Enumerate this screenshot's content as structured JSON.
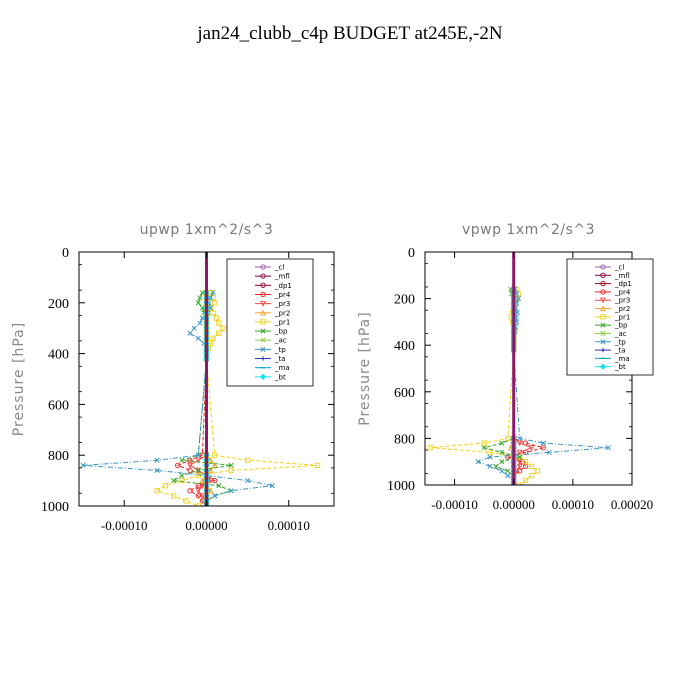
{
  "figure": {
    "title": "jan24_clubb_c4p  BUDGET at245E,-2N"
  },
  "chart_data": [
    {
      "type": "line",
      "title": "upwp   1xm^2/s^3",
      "ylabel": "Pressure [hPa]",
      "ylim": [
        1000,
        0
      ],
      "xlim": [
        -0.000155,
        0.000155
      ],
      "yticks": [
        "0",
        "200",
        "400",
        "600",
        "800",
        "1000"
      ],
      "xticks": [
        "-0.00010",
        "0.00000",
        "0.00010"
      ],
      "xtick_values": [
        -0.0001,
        0,
        0.0001
      ],
      "legend_position": "top-right",
      "levels": [
        160,
        180,
        200,
        220,
        240,
        260,
        280,
        300,
        320,
        340,
        360,
        380,
        400,
        420,
        800,
        820,
        840,
        860,
        880,
        900,
        920,
        940,
        960,
        980,
        1000
      ],
      "series": [
        {
          "name": "_cl",
          "color": "#9a5fb5",
          "marker": "o",
          "values": [
            0,
            0,
            0,
            0,
            0,
            0,
            0,
            0,
            0,
            0,
            0,
            0,
            0,
            0,
            0,
            0,
            0,
            0,
            0,
            0,
            0,
            0,
            0,
            0,
            0
          ]
        },
        {
          "name": "_mfl",
          "color": "#8b0045",
          "marker": "o",
          "values": [
            0,
            0,
            0,
            0,
            0,
            0,
            0,
            0,
            0,
            0,
            0,
            0,
            0,
            0,
            0,
            0,
            0,
            0,
            0,
            0,
            0,
            0,
            0,
            0,
            0
          ]
        },
        {
          "name": "_dp1",
          "color": "#9b0020",
          "marker": "o",
          "values": [
            0,
            0,
            0,
            0,
            0,
            0,
            0,
            0,
            0,
            0,
            0,
            0,
            0,
            0,
            0,
            0,
            0,
            0,
            0,
            0,
            0,
            0,
            0,
            0,
            0
          ]
        },
        {
          "name": "_pr4",
          "color": "#e8231d",
          "marker": "o",
          "values": [
            0,
            0,
            0,
            0,
            0,
            0,
            0,
            0,
            0,
            0,
            0,
            0,
            0,
            0,
            -5e-06,
            -2e-05,
            -3.5e-05,
            -2e-05,
            0,
            1e-05,
            -1e-05,
            -2e-05,
            -1e-05,
            -5e-06,
            0
          ]
        },
        {
          "name": "_pr3",
          "color": "#f04a4a",
          "marker": "v",
          "values": [
            0,
            0,
            0,
            0,
            0,
            0,
            0,
            0,
            0,
            0,
            0,
            0,
            0,
            0,
            0,
            -1e-05,
            -2e-05,
            -1e-05,
            0,
            5e-06,
            -5e-06,
            -1e-05,
            -5e-06,
            0,
            0
          ]
        },
        {
          "name": "_pr2",
          "color": "#f2a030",
          "marker": "^",
          "values": [
            0,
            0,
            0,
            0,
            0,
            0,
            0,
            0,
            0,
            0,
            0,
            0,
            0,
            0,
            0,
            5e-06,
            1e-05,
            5e-06,
            0,
            -5e-06,
            0,
            5e-06,
            0,
            0,
            0
          ]
        },
        {
          "name": "_pr1",
          "color": "#f2d21a",
          "marker": "s",
          "values": [
            5e-06,
            8e-06,
            1e-05,
            5e-06,
            8e-06,
            1.2e-05,
            1.5e-05,
            2e-05,
            1.5e-05,
            8e-06,
            5e-06,
            2e-06,
            0,
            0,
            1e-05,
            5e-05,
            0.000135,
            3e-05,
            -1e-05,
            -3e-05,
            -5e-05,
            -6e-05,
            -4e-05,
            -2.5e-05,
            -1e-05
          ]
        },
        {
          "name": "_bp",
          "color": "#3aa52b",
          "marker": "x",
          "values": [
            -5e-06,
            -8e-06,
            -1e-05,
            -5e-06,
            -3e-06,
            0,
            0,
            0,
            0,
            0,
            0,
            0,
            0,
            0,
            -1e-05,
            -3e-05,
            3e-05,
            -1e-05,
            -3e-05,
            -4e-05,
            1.5e-05,
            3e-05,
            1e-05,
            0,
            0
          ]
        },
        {
          "name": "_ac",
          "color": "#8fd24a",
          "marker": "x",
          "values": [
            0,
            0,
            0,
            0,
            0,
            0,
            0,
            0,
            0,
            0,
            0,
            0,
            0,
            0,
            0,
            0,
            0,
            0,
            0,
            0,
            0,
            0,
            0,
            0,
            0
          ]
        },
        {
          "name": "_tp",
          "color": "#3a94c8",
          "marker": "x",
          "values": [
            8e-06,
            5e-06,
            3e-06,
            5e-06,
            2e-06,
            -5e-06,
            -8e-06,
            -1.5e-05,
            -2e-05,
            -1e-05,
            -3e-06,
            0,
            0,
            0,
            -1e-05,
            -6e-05,
            -0.00015,
            -6e-05,
            0,
            5e-05,
            8e-05,
            3e-05,
            1e-05,
            0,
            0
          ]
        },
        {
          "name": "_ta",
          "color": "#2d2db0",
          "marker": "+",
          "values": [
            0,
            0,
            0,
            0,
            0,
            0,
            0,
            0,
            0,
            0,
            0,
            0,
            0,
            0,
            0,
            0,
            0,
            0,
            0,
            0,
            0,
            0,
            0,
            0,
            0
          ]
        },
        {
          "name": "_ma",
          "color": "#00a0c8",
          "marker": "-",
          "values": [
            0,
            0,
            0,
            0,
            0,
            0,
            0,
            0,
            0,
            0,
            0,
            0,
            0,
            0,
            0,
            0,
            0,
            0,
            0,
            0,
            0,
            0,
            0,
            0,
            0
          ]
        },
        {
          "name": "_bt",
          "color": "#10e0f0",
          "marker": "D",
          "values": [
            0,
            0,
            0,
            0,
            0,
            0,
            0,
            0,
            0,
            0,
            0,
            0,
            0,
            0,
            0,
            0,
            0,
            0,
            0,
            0,
            0,
            0,
            0,
            0,
            0
          ]
        }
      ]
    },
    {
      "type": "line",
      "title": "vpwp   1xm^2/s^3",
      "ylabel": "Pressure [hPa]",
      "ylim": [
        1000,
        0
      ],
      "xlim": [
        -0.00015,
        0.0002
      ],
      "yticks": [
        "0",
        "200",
        "400",
        "600",
        "800",
        "1000"
      ],
      "xticks": [
        "-0.00010",
        "0.00000",
        "0.00010",
        "0.00020"
      ],
      "xtick_values": [
        -0.0001,
        0,
        0.0001,
        0.0002
      ],
      "legend_position": "top-right",
      "levels": [
        160,
        180,
        200,
        220,
        240,
        260,
        280,
        300,
        320,
        340,
        360,
        380,
        400,
        420,
        800,
        820,
        840,
        860,
        880,
        900,
        920,
        940,
        960,
        980,
        1000
      ],
      "series": [
        {
          "name": "_cl",
          "color": "#9a5fb5",
          "marker": "o",
          "values": [
            0,
            0,
            0,
            0,
            0,
            0,
            0,
            0,
            0,
            0,
            0,
            0,
            0,
            0,
            0,
            0,
            0,
            0,
            0,
            0,
            0,
            0,
            0,
            0,
            0
          ]
        },
        {
          "name": "_mfl",
          "color": "#8b0045",
          "marker": "o",
          "values": [
            0,
            0,
            0,
            0,
            0,
            0,
            0,
            0,
            0,
            0,
            0,
            0,
            0,
            0,
            0,
            0,
            0,
            0,
            0,
            0,
            0,
            0,
            0,
            0,
            0
          ]
        },
        {
          "name": "_dp1",
          "color": "#9b0020",
          "marker": "o",
          "values": [
            0,
            0,
            0,
            0,
            0,
            0,
            0,
            0,
            0,
            0,
            0,
            0,
            0,
            0,
            0,
            0,
            0,
            0,
            0,
            0,
            0,
            0,
            0,
            0,
            0
          ]
        },
        {
          "name": "_pr4",
          "color": "#e8231d",
          "marker": "o",
          "values": [
            0,
            0,
            0,
            0,
            0,
            0,
            0,
            0,
            0,
            0,
            0,
            0,
            0,
            0,
            0,
            2e-05,
            5e-05,
            2e-05,
            -1e-05,
            1.5e-05,
            2e-05,
            1e-05,
            0,
            0,
            0
          ]
        },
        {
          "name": "_pr3",
          "color": "#f04a4a",
          "marker": "v",
          "values": [
            0,
            0,
            0,
            0,
            0,
            0,
            0,
            0,
            0,
            0,
            0,
            0,
            0,
            0,
            0,
            1e-05,
            3e-05,
            1e-05,
            0,
            1e-05,
            1e-05,
            5e-06,
            0,
            0,
            0
          ]
        },
        {
          "name": "_pr2",
          "color": "#f2a030",
          "marker": "^",
          "values": [
            0,
            0,
            0,
            0,
            0,
            0,
            0,
            0,
            0,
            0,
            0,
            0,
            0,
            0,
            0,
            0,
            -5e-06,
            0,
            0,
            0,
            0,
            0,
            0,
            0,
            0
          ]
        },
        {
          "name": "_pr1",
          "color": "#f2d21a",
          "marker": "s",
          "values": [
            5e-06,
            8e-06,
            5e-06,
            3e-06,
            2e-06,
            -2e-06,
            -4e-06,
            -2e-06,
            0,
            2e-06,
            0,
            0,
            0,
            0,
            -1e-05,
            -5e-05,
            -0.00014,
            -4e-05,
            1e-05,
            2e-05,
            3e-05,
            4e-05,
            3e-05,
            2e-05,
            1e-05
          ]
        },
        {
          "name": "_bp",
          "color": "#3aa52b",
          "marker": "x",
          "values": [
            -5e-06,
            -3e-06,
            0,
            0,
            0,
            0,
            0,
            0,
            0,
            0,
            0,
            0,
            0,
            0,
            0,
            -2e-05,
            -5e-05,
            -2e-05,
            1e-05,
            -2e-05,
            -3e-05,
            -1e-05,
            0,
            0,
            0
          ]
        },
        {
          "name": "_ac",
          "color": "#8fd24a",
          "marker": "x",
          "values": [
            0,
            0,
            0,
            0,
            0,
            0,
            0,
            0,
            0,
            0,
            0,
            0,
            0,
            0,
            0,
            0,
            0,
            0,
            0,
            0,
            0,
            0,
            0,
            0,
            0
          ]
        },
        {
          "name": "_tp",
          "color": "#3a94c8",
          "marker": "x",
          "values": [
            2e-06,
            5e-06,
            8e-06,
            5e-06,
            3e-06,
            6e-06,
            4e-06,
            5e-06,
            3e-06,
            2e-06,
            0,
            0,
            0,
            0,
            1e-05,
            5e-05,
            0.00016,
            6e-05,
            -4e-05,
            -6e-05,
            -4e-05,
            -2e-05,
            -1e-05,
            0,
            0
          ]
        },
        {
          "name": "_ta",
          "color": "#2d2db0",
          "marker": "+",
          "values": [
            0,
            0,
            0,
            0,
            0,
            0,
            0,
            0,
            0,
            0,
            0,
            0,
            0,
            0,
            0,
            0,
            0,
            0,
            0,
            0,
            0,
            0,
            0,
            0,
            0
          ]
        },
        {
          "name": "_ma",
          "color": "#00a0c8",
          "marker": "-",
          "values": [
            0,
            0,
            0,
            0,
            0,
            0,
            0,
            0,
            0,
            0,
            0,
            0,
            0,
            0,
            0,
            0,
            0,
            0,
            0,
            0,
            0,
            0,
            0,
            0,
            0
          ]
        },
        {
          "name": "_bt",
          "color": "#10e0f0",
          "marker": "D",
          "values": [
            0,
            0,
            0,
            0,
            0,
            0,
            0,
            0,
            0,
            0,
            0,
            0,
            0,
            0,
            0,
            0,
            0,
            0,
            0,
            0,
            0,
            0,
            0,
            0,
            0
          ]
        }
      ]
    }
  ]
}
